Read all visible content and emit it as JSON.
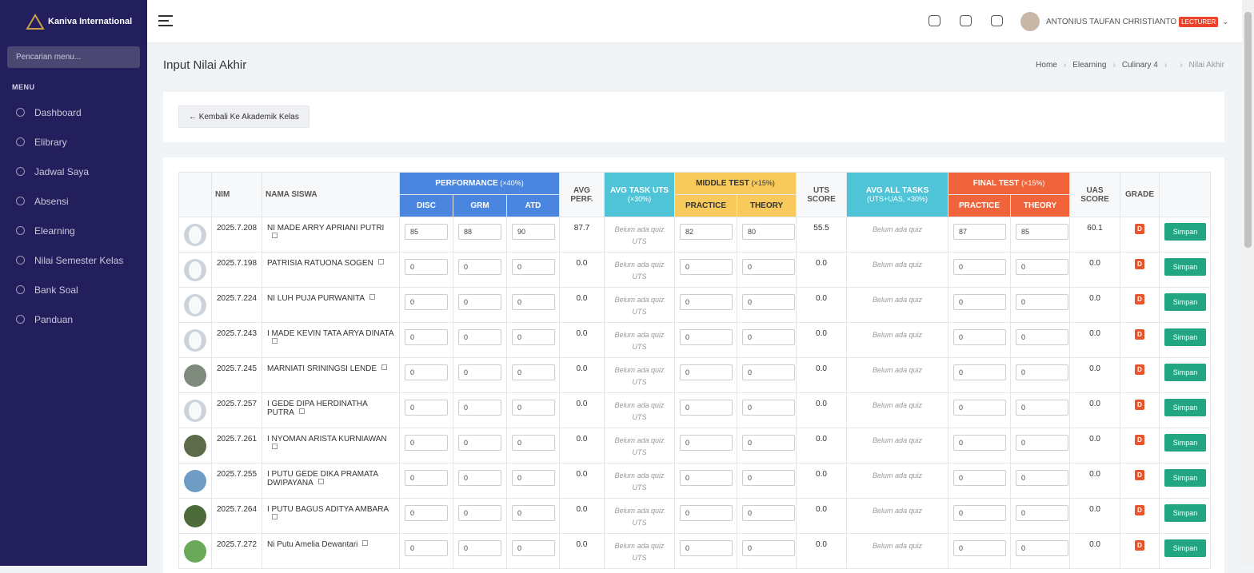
{
  "sidebar": {
    "brand": "Kaniva International",
    "search_placeholder": "Pencarian menu...",
    "menu_label": "MENU",
    "menu": [
      "Dashboard",
      "Elibrary",
      "Jadwal Saya",
      "Absensi",
      "Elearning",
      "Nilai Semester Kelas",
      "Bank Soal",
      "Panduan"
    ]
  },
  "topbar": {
    "user_name": "ANTONIUS TAUFAN CHRISTIANTO",
    "role": "LECTURER"
  },
  "header": {
    "title": "Input Nilai Akhir",
    "breadcrumb": [
      "Home",
      "Elearning",
      "Culinary 4",
      "Nilai Akhir"
    ]
  },
  "back_button": "← Kembali Ke Akademik Kelas",
  "table": {
    "columns": {
      "nim": "NIM",
      "name": "NAMA SISWA",
      "performance": "PERFORMANCE",
      "performance_weight": "(×40%)",
      "disc": "DISC",
      "grm": "GRM",
      "atd": "ATD",
      "avg_perf": "AVG PERF.",
      "avg_task_uts": "AVG TASK UTS",
      "avg_task_uts_weight": "(×30%)",
      "middle_test": "MIDDLE TEST",
      "middle_test_weight": "(×15%)",
      "mid_practice": "PRACTICE",
      "mid_theory": "THEORY",
      "uts_score": "UTS SCORE",
      "avg_all_tasks": "AVG ALL TASKS",
      "avg_all_tasks_weight": "(UTS+UAS, ×30%)",
      "final_test": "FINAL TEST",
      "final_test_weight": "(×15%)",
      "final_practice": "PRACTICE",
      "final_theory": "THEORY",
      "uas_score": "UAS SCORE",
      "grade": "GRADE"
    },
    "rows": [
      {
        "nim": "2025.7.208",
        "name": "NI MADE ARRY APRIANI PUTRI",
        "disc": "85",
        "grm": "88",
        "atd": "90",
        "avg_perf": "87.7",
        "task_uts": "Belum ada quiz UTS",
        "mid_practice": "82",
        "mid_theory": "80",
        "uts_score": "55.5",
        "all_tasks": "Belum ada quiz",
        "final_practice": "87",
        "final_theory": "85",
        "uas_score": "60.1",
        "grade": "D",
        "action": "Simpan"
      },
      {
        "nim": "2025.7.198",
        "name": "PATRISIA RATUONA SOGEN",
        "disc": "0",
        "grm": "0",
        "atd": "0",
        "avg_perf": "0.0",
        "task_uts": "Belum ada quiz UTS",
        "mid_practice": "0",
        "mid_theory": "0",
        "uts_score": "0.0",
        "all_tasks": "Belum ada quiz",
        "final_practice": "0",
        "final_theory": "0",
        "uas_score": "0.0",
        "grade": "D",
        "action": "Simpan"
      },
      {
        "nim": "2025.7.224",
        "name": "NI LUH PUJA PURWANITA",
        "disc": "0",
        "grm": "0",
        "atd": "0",
        "avg_perf": "0.0",
        "task_uts": "Belum ada quiz UTS",
        "mid_practice": "0",
        "mid_theory": "0",
        "uts_score": "0.0",
        "all_tasks": "Belum ada quiz",
        "final_practice": "0",
        "final_theory": "0",
        "uas_score": "0.0",
        "grade": "D",
        "action": "Simpan"
      },
      {
        "nim": "2025.7.243",
        "name": "I MADE KEVIN TATA ARYA DINATA",
        "disc": "0",
        "grm": "0",
        "atd": "0",
        "avg_perf": "0.0",
        "task_uts": "Belum ada quiz UTS",
        "mid_practice": "0",
        "mid_theory": "0",
        "uts_score": "0.0",
        "all_tasks": "Belum ada quiz",
        "final_practice": "0",
        "final_theory": "0",
        "uas_score": "0.0",
        "grade": "D",
        "action": "Simpan"
      },
      {
        "nim": "2025.7.245",
        "name": "MARNIATI SRININGSI LENDE",
        "disc": "0",
        "grm": "0",
        "atd": "0",
        "avg_perf": "0.0",
        "task_uts": "Belum ada quiz UTS",
        "mid_practice": "0",
        "mid_theory": "0",
        "uts_score": "0.0",
        "all_tasks": "Belum ada quiz",
        "final_practice": "0",
        "final_theory": "0",
        "uas_score": "0.0",
        "grade": "D",
        "action": "Simpan"
      },
      {
        "nim": "2025.7.257",
        "name": "I GEDE DIPA HERDINATHA PUTRA",
        "disc": "0",
        "grm": "0",
        "atd": "0",
        "avg_perf": "0.0",
        "task_uts": "Belum ada quiz UTS",
        "mid_practice": "0",
        "mid_theory": "0",
        "uts_score": "0.0",
        "all_tasks": "Belum ada quiz",
        "final_practice": "0",
        "final_theory": "0",
        "uas_score": "0.0",
        "grade": "D",
        "action": "Simpan"
      },
      {
        "nim": "2025.7.261",
        "name": "I NYOMAN ARISTA KURNIAWAN",
        "disc": "0",
        "grm": "0",
        "atd": "0",
        "avg_perf": "0.0",
        "task_uts": "Belum ada quiz UTS",
        "mid_practice": "0",
        "mid_theory": "0",
        "uts_score": "0.0",
        "all_tasks": "Belum ada quiz",
        "final_practice": "0",
        "final_theory": "0",
        "uas_score": "0.0",
        "grade": "D",
        "action": "Simpan"
      },
      {
        "nim": "2025.7.255",
        "name": "I PUTU GEDE DIKA PRAMATA DWIPAYANA",
        "disc": "0",
        "grm": "0",
        "atd": "0",
        "avg_perf": "0.0",
        "task_uts": "Belum ada quiz UTS",
        "mid_practice": "0",
        "mid_theory": "0",
        "uts_score": "0.0",
        "all_tasks": "Belum ada quiz",
        "final_practice": "0",
        "final_theory": "0",
        "uas_score": "0.0",
        "grade": "D",
        "action": "Simpan"
      },
      {
        "nim": "2025.7.264",
        "name": "I PUTU BAGUS ADITYA AMBARA",
        "disc": "0",
        "grm": "0",
        "atd": "0",
        "avg_perf": "0.0",
        "task_uts": "Belum ada quiz UTS",
        "mid_practice": "0",
        "mid_theory": "0",
        "uts_score": "0.0",
        "all_tasks": "Belum ada quiz",
        "final_practice": "0",
        "final_theory": "0",
        "uas_score": "0.0",
        "grade": "D",
        "action": "Simpan"
      },
      {
        "nim": "2025.7.272",
        "name": "Ni Putu Amelia Dewantari",
        "disc": "0",
        "grm": "0",
        "atd": "0",
        "avg_perf": "0.0",
        "task_uts": "Belum ada quiz UTS",
        "mid_practice": "0",
        "mid_theory": "0",
        "uts_score": "0.0",
        "all_tasks": "Belum ada quiz",
        "final_practice": "0",
        "final_theory": "0",
        "uas_score": "0.0",
        "grade": "D",
        "action": "Simpan"
      }
    ]
  }
}
